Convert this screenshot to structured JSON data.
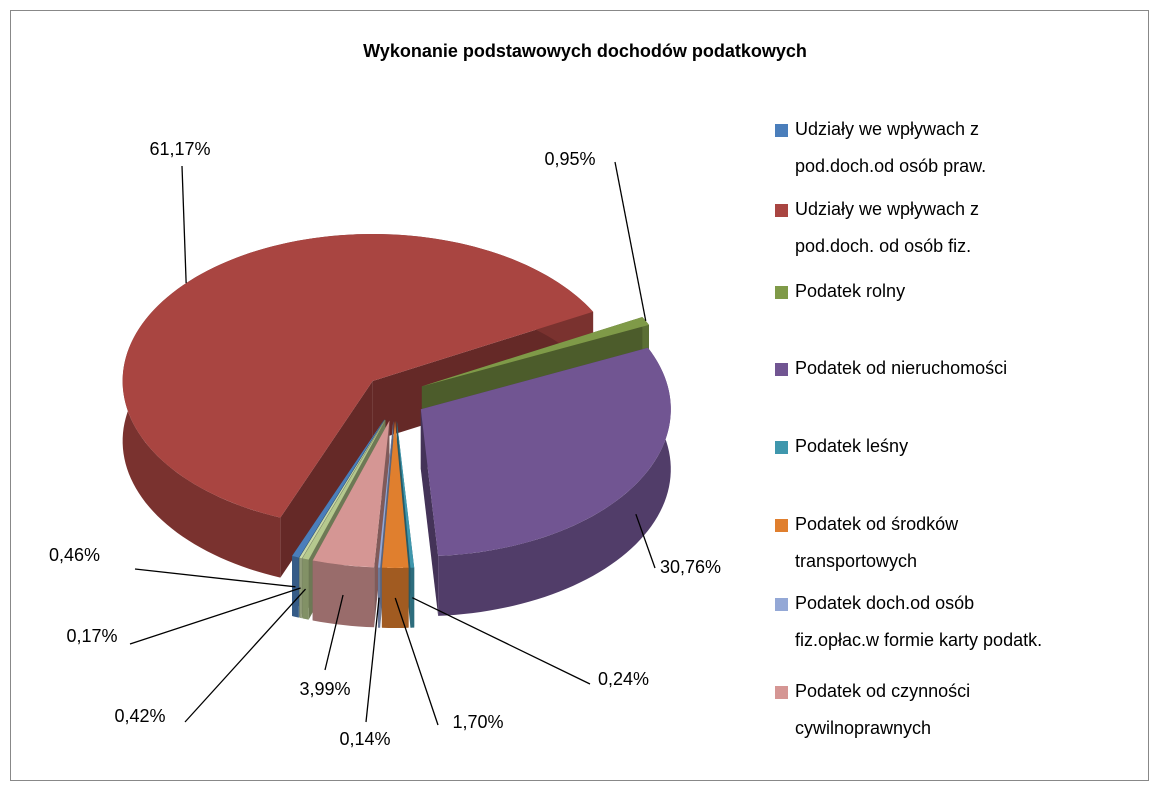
{
  "chart_data": {
    "type": "pie",
    "title": "Wykonanie podstawowych dochodów podatkowych",
    "categories": [
      "Udziały we wpływach z pod.doch.od osób praw.",
      "Udziały we wpływach z pod.doch. od osób fiz.",
      "Podatek rolny",
      "Podatek od nieruchomości",
      "Podatek leśny",
      "Podatek od środków transportowych",
      "Podatek doch.od osób fiz.opłac.w formie karty podatk.",
      "Podatek od czynności cywilnoprawnych",
      null,
      null
    ],
    "values": [
      0.46,
      61.17,
      0.95,
      30.76,
      0.24,
      1.7,
      0.14,
      3.99,
      0.42,
      0.17
    ],
    "value_labels": [
      "0,46%",
      "61,17%",
      "0,95%",
      "30,76%",
      "0,24%",
      "1,70%",
      "0,14%",
      "3,99%",
      "0,42%",
      "0,17%"
    ],
    "colors": [
      "#4a7ebb",
      "#a94541",
      "#7f9a48",
      "#715592",
      "#3f97ad",
      "#e07f2e",
      "#94a8d6",
      "#d59694",
      "#b5c98e",
      "#c9d9a8"
    ],
    "legend": "right"
  }
}
